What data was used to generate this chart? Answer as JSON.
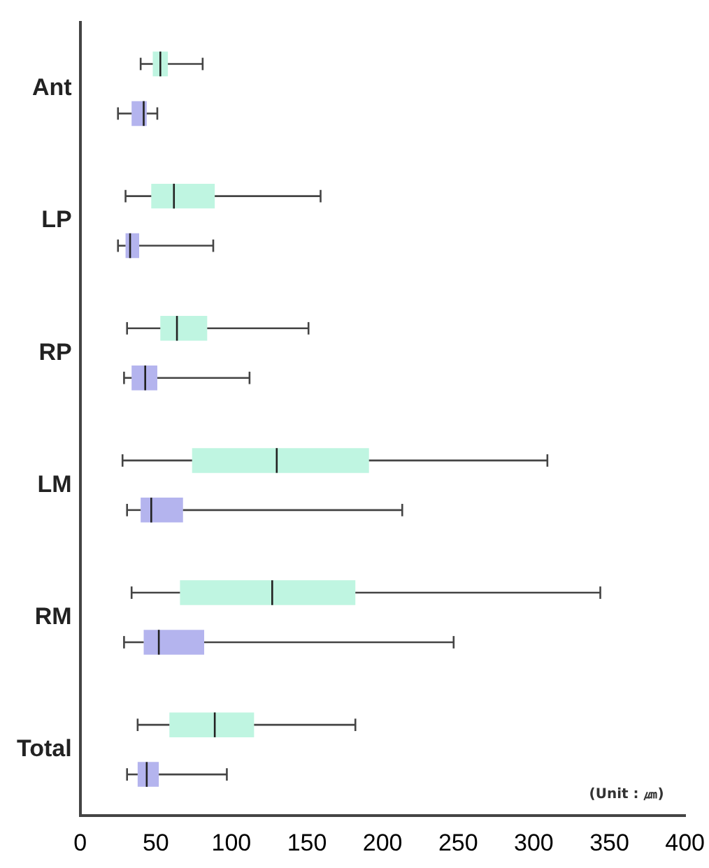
{
  "chart_data": {
    "type": "box",
    "orientation": "horizontal",
    "categories": [
      "Ant",
      "LP",
      "RP",
      "LM",
      "RM",
      "Total"
    ],
    "xlim": [
      0,
      400
    ],
    "xticks": [
      0,
      50,
      100,
      150,
      200,
      250,
      300,
      350,
      400
    ],
    "grid": false,
    "annotations": [
      "(Unit : ㎛)"
    ],
    "series": [
      {
        "color": "#bff5e1",
        "boxes": [
          {
            "low": 40,
            "q1": 48,
            "median": 53,
            "q3": 58,
            "high": 81
          },
          {
            "low": 30,
            "q1": 47,
            "median": 62,
            "q3": 89,
            "high": 159
          },
          {
            "low": 31,
            "q1": 53,
            "median": 64,
            "q3": 84,
            "high": 151
          },
          {
            "low": 28,
            "q1": 74,
            "median": 130,
            "q3": 191,
            "high": 309
          },
          {
            "low": 34,
            "q1": 66,
            "median": 127,
            "q3": 182,
            "high": 344
          },
          {
            "low": 38,
            "q1": 59,
            "median": 89,
            "q3": 115,
            "high": 182
          }
        ]
      },
      {
        "color": "#b4b4ee",
        "boxes": [
          {
            "low": 25,
            "q1": 34,
            "median": 42,
            "q3": 44,
            "high": 51
          },
          {
            "low": 25,
            "q1": 30,
            "median": 33,
            "q3": 39,
            "high": 88
          },
          {
            "low": 29,
            "q1": 34,
            "median": 43,
            "q3": 51,
            "high": 112
          },
          {
            "low": 31,
            "q1": 40,
            "median": 47,
            "q3": 68,
            "high": 213
          },
          {
            "low": 29,
            "q1": 42,
            "median": 52,
            "q3": 82,
            "high": 247
          },
          {
            "low": 31,
            "q1": 38,
            "median": 44,
            "q3": 52,
            "high": 97
          }
        ]
      }
    ]
  }
}
